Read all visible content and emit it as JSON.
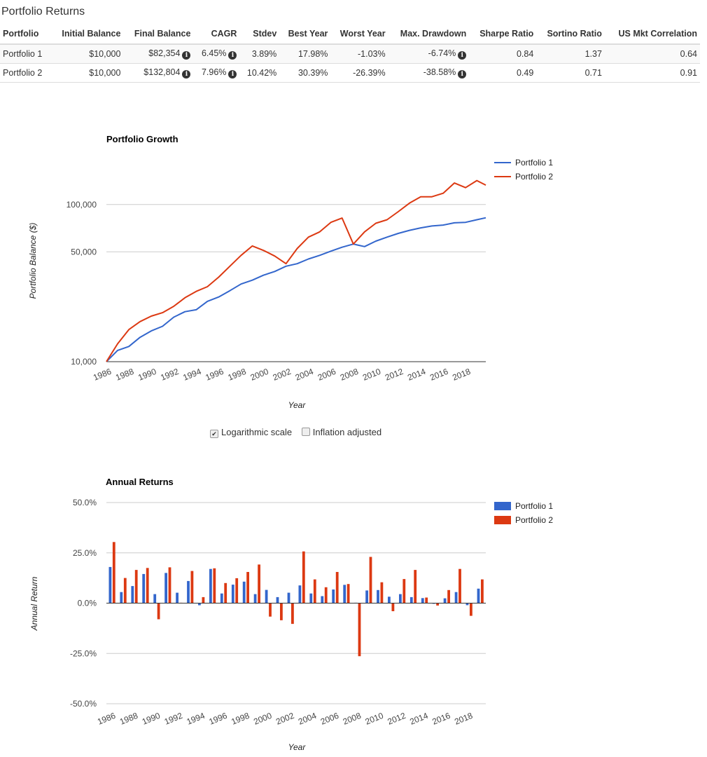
{
  "page": {
    "title": "Portfolio Returns"
  },
  "table": {
    "headers": [
      "Portfolio",
      "Initial Balance",
      "Final Balance",
      "CAGR",
      "Stdev",
      "Best Year",
      "Worst Year",
      "Max. Drawdown",
      "Sharpe Ratio",
      "Sortino Ratio",
      "US Mkt Correlation"
    ],
    "rows": [
      [
        "Portfolio 1",
        "$10,000",
        "$82,354",
        "6.45%",
        "3.89%",
        "17.98%",
        "-1.03%",
        "-6.74%",
        "0.84",
        "1.37",
        "0.64"
      ],
      [
        "Portfolio 2",
        "$10,000",
        "$132,804",
        "7.96%",
        "10.42%",
        "30.39%",
        "-26.39%",
        "-38.58%",
        "0.49",
        "0.71",
        "0.91"
      ]
    ],
    "info_icon": "info-circle-icon"
  },
  "options": {
    "log_scale": {
      "label": "Logarithmic scale",
      "checked": true
    },
    "inflation": {
      "label": "Inflation adjusted",
      "checked": false
    }
  },
  "chart_data": [
    {
      "type": "line",
      "title": "Portfolio Growth",
      "xlabel": "Year",
      "ylabel": "Portfolio Balance ($)",
      "yscale": "log",
      "ylim": [
        10000,
        160000
      ],
      "yticks": [
        10000,
        50000,
        100000
      ],
      "ytick_labels": [
        "10,000",
        "50,000",
        "100,000"
      ],
      "xticks": [
        "1986",
        "1988",
        "1990",
        "1992",
        "1994",
        "1996",
        "1998",
        "2000",
        "2002",
        "2004",
        "2006",
        "2008",
        "2010",
        "2012",
        "2014",
        "2016",
        "2018"
      ],
      "legend_position": "right",
      "x": [
        1986,
        1987,
        1988,
        1989,
        1990,
        1991,
        1992,
        1993,
        1994,
        1995,
        1996,
        1997,
        1998,
        1999,
        2000,
        2001,
        2002,
        2003,
        2004,
        2005,
        2006,
        2007,
        2008,
        2009,
        2010,
        2011,
        2012,
        2013,
        2014,
        2015,
        2016,
        2017,
        2018,
        2019,
        2019.8
      ],
      "series": [
        {
          "name": "Portfolio 1",
          "color": "#3366cc",
          "values": [
            10000,
            11800,
            12500,
            14300,
            15700,
            16800,
            19200,
            20800,
            21400,
            24200,
            25800,
            28300,
            31200,
            33000,
            35500,
            37500,
            40500,
            42000,
            45000,
            47500,
            50500,
            53500,
            56000,
            54000,
            58500,
            62000,
            65500,
            68500,
            71000,
            73000,
            74000,
            76500,
            77000,
            80000,
            82354
          ]
        },
        {
          "name": "Portfolio 2",
          "color": "#dc3912",
          "values": [
            10000,
            13000,
            16000,
            18000,
            19500,
            20500,
            22500,
            25500,
            28000,
            30000,
            34500,
            40500,
            47500,
            54500,
            51000,
            47000,
            42000,
            52500,
            62000,
            67000,
            77000,
            82000,
            56000,
            67000,
            76000,
            80000,
            90000,
            102000,
            112000,
            112000,
            118000,
            137000,
            128000,
            142000,
            132804
          ]
        }
      ]
    },
    {
      "type": "bar",
      "title": "Annual Returns",
      "xlabel": "Year",
      "ylabel": "Annual Return",
      "ylim": [
        -50,
        50
      ],
      "yticks": [
        -50,
        -25,
        0,
        25,
        50
      ],
      "ytick_labels": [
        "-50.0%",
        "-25.0%",
        "0.0%",
        "25.0%",
        "50.0%"
      ],
      "xticks": [
        "1986",
        "1988",
        "1990",
        "1992",
        "1994",
        "1996",
        "1998",
        "2000",
        "2002",
        "2004",
        "2006",
        "2008",
        "2010",
        "2012",
        "2014",
        "2016",
        "2018"
      ],
      "legend_position": "right",
      "categories": [
        "1986",
        "1987",
        "1988",
        "1989",
        "1990",
        "1991",
        "1992",
        "1993",
        "1994",
        "1995",
        "1996",
        "1997",
        "1998",
        "1999",
        "2000",
        "2001",
        "2002",
        "2003",
        "2004",
        "2005",
        "2006",
        "2007",
        "2008",
        "2009",
        "2010",
        "2011",
        "2012",
        "2013",
        "2014",
        "2015",
        "2016",
        "2017",
        "2018",
        "2019"
      ],
      "series": [
        {
          "name": "Portfolio 1",
          "color": "#3366cc",
          "values": [
            17.98,
            5.5,
            8.5,
            14.5,
            4.5,
            15.0,
            5.2,
            11.0,
            -1.03,
            17.0,
            4.8,
            9.2,
            10.7,
            4.5,
            6.6,
            3.0,
            5.2,
            8.8,
            4.8,
            3.5,
            6.8,
            9.1,
            0.2,
            6.3,
            6.5,
            3.2,
            4.5,
            3.0,
            2.5,
            -0.3,
            2.4,
            5.5,
            -1.0,
            7.2
          ]
        },
        {
          "name": "Portfolio 2",
          "color": "#dc3912",
          "values": [
            30.39,
            12.5,
            16.5,
            17.5,
            -8.0,
            17.8,
            0.2,
            16.0,
            3.0,
            17.3,
            10.0,
            12.4,
            15.5,
            19.2,
            -6.7,
            -8.5,
            -10.3,
            25.7,
            11.8,
            7.9,
            15.5,
            9.5,
            -26.39,
            23.0,
            10.4,
            -4.0,
            12.0,
            16.5,
            2.8,
            -1.2,
            6.5,
            17.0,
            -6.3,
            11.8
          ]
        }
      ]
    }
  ]
}
